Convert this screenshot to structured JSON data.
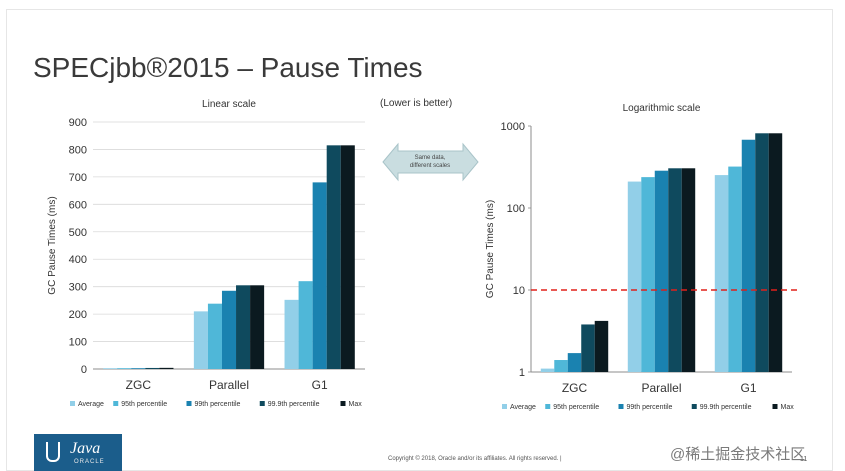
{
  "slide": {
    "title": "SPECjbb®2015 – Pause Times",
    "note": "(Lower is better)",
    "callout_line1": "Same data,",
    "callout_line2": "different scales",
    "footer": "Copyright © 2018, Oracle and/or its affiliates. All rights reserved.  |",
    "page_number": "11",
    "logo_text": "Java",
    "logo_sub": "ORACLE",
    "watermark": "@稀土掘金技术社区"
  },
  "colors": {
    "series": [
      "#92cfe8",
      "#4fb7d8",
      "#1a82b0",
      "#0f4a5e",
      "#0b1a20"
    ],
    "threshold": "#e0201a",
    "callout": "#c9dde0"
  },
  "chart_data": [
    {
      "type": "bar",
      "title": "Linear scale",
      "ylabel": "GC Pause Times (ms)",
      "xlabel": "",
      "scale": "linear",
      "ylim": [
        0,
        900
      ],
      "yticks": [
        "0",
        "100",
        "200",
        "300",
        "400",
        "500",
        "600",
        "700",
        "800",
        "900"
      ],
      "categories": [
        "ZGC",
        "Parallel",
        "G1"
      ],
      "series": [
        {
          "name": "Average",
          "values": [
            1.1,
            210,
            252
          ]
        },
        {
          "name": "95th percentile",
          "values": [
            1.4,
            238,
            320
          ]
        },
        {
          "name": "99th percentile",
          "values": [
            1.7,
            285,
            680
          ]
        },
        {
          "name": "99.9th percentile",
          "values": [
            3.8,
            305,
            815
          ]
        },
        {
          "name": "Max",
          "values": [
            4.2,
            305,
            815
          ]
        }
      ],
      "legend": "bottom",
      "grid": true
    },
    {
      "type": "bar",
      "title": "Logarithmic scale",
      "ylabel": "GC Pause Times (ms)",
      "xlabel": "",
      "scale": "log",
      "ylim": [
        1,
        1000
      ],
      "yticks": [
        "1",
        "10",
        "100",
        "1000"
      ],
      "categories": [
        "ZGC",
        "Parallel",
        "G1"
      ],
      "series": [
        {
          "name": "Average",
          "values": [
            1.1,
            210,
            252
          ]
        },
        {
          "name": "95th percentile",
          "values": [
            1.4,
            238,
            320
          ]
        },
        {
          "name": "99th percentile",
          "values": [
            1.7,
            285,
            680
          ]
        },
        {
          "name": "99.9th percentile",
          "values": [
            3.8,
            305,
            815
          ]
        },
        {
          "name": "Max",
          "values": [
            4.2,
            305,
            815
          ]
        }
      ],
      "threshold": 10,
      "legend": "bottom",
      "grid": false
    }
  ]
}
